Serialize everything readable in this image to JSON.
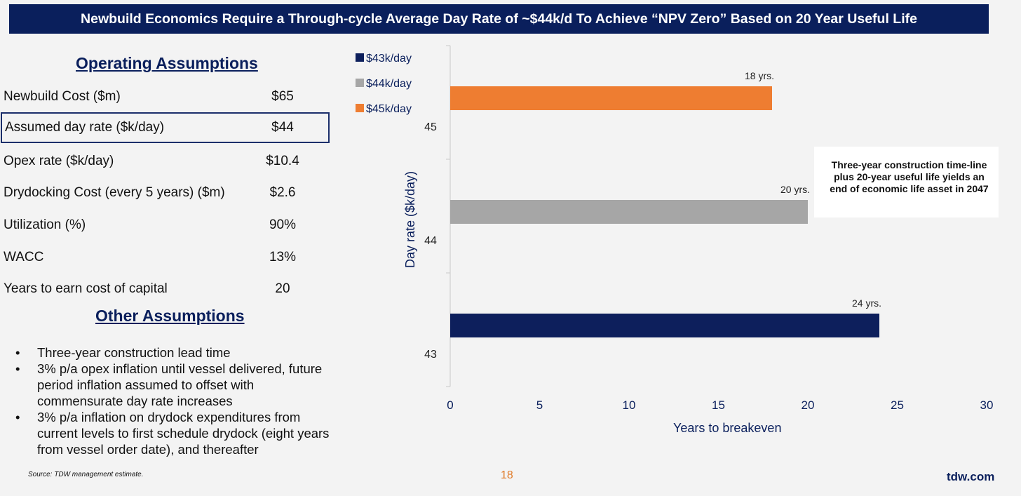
{
  "title": "Newbuild Economics Require a Through-cycle Average Day Rate of ~$44k/d To Achieve “NPV Zero” Based on 20 Year Useful Life",
  "operating_assumptions": {
    "heading": "Operating Assumptions",
    "rows": [
      {
        "label": "Newbuild Cost ($m)",
        "value": "$65"
      },
      {
        "label": "Assumed day rate ($k/day)",
        "value": "$44"
      },
      {
        "label": "Opex rate ($k/day)",
        "value": "$10.4"
      },
      {
        "label": "Drydocking Cost (every 5 years) ($m)",
        "value": "$2.6"
      },
      {
        "label": "Utilization (%)",
        "value": "90%"
      },
      {
        "label": "WACC",
        "value": "13%"
      },
      {
        "label": "Years to earn cost of capital",
        "value": "20"
      }
    ]
  },
  "other_assumptions": {
    "heading": "Other Assumptions",
    "bullet_glyph": "•",
    "items": [
      "Three-year construction lead time",
      "3% p/a opex inflation until vessel delivered, future period inflation assumed to offset with commensurate day rate increases",
      "3% p/a inflation on drydock expenditures from current levels to first schedule drydock (eight years from vessel order date), and thereafter"
    ]
  },
  "chart_data": {
    "type": "bar",
    "orientation": "horizontal",
    "categories": [
      "43",
      "44",
      "45"
    ],
    "values": [
      24,
      20,
      18
    ],
    "data_labels": [
      "24 yrs.",
      "20 yrs.",
      "18 yrs."
    ],
    "colors": [
      "#0d1f5c",
      "#a6a6a6",
      "#ee7d31"
    ],
    "legend": [
      {
        "label": "$43k/day",
        "color": "#0d1f5c"
      },
      {
        "label": "$44k/day",
        "color": "#a6a6a6"
      },
      {
        "label": "$45k/day",
        "color": "#ee7d31"
      }
    ],
    "legend_position": "top-left",
    "xlabel": "Years to breakeven",
    "ylabel": "Day rate ($k/day)",
    "xlim": [
      0,
      30
    ],
    "xticks": [
      "0",
      "5",
      "10",
      "15",
      "20",
      "25",
      "30"
    ],
    "grid": false
  },
  "callout": "Three-year construction time-line plus 20-year useful life yields an end of economic life asset in 2047",
  "footer": {
    "source": "Source: TDW management estimate.",
    "page_number": "18",
    "site": "tdw.com"
  }
}
